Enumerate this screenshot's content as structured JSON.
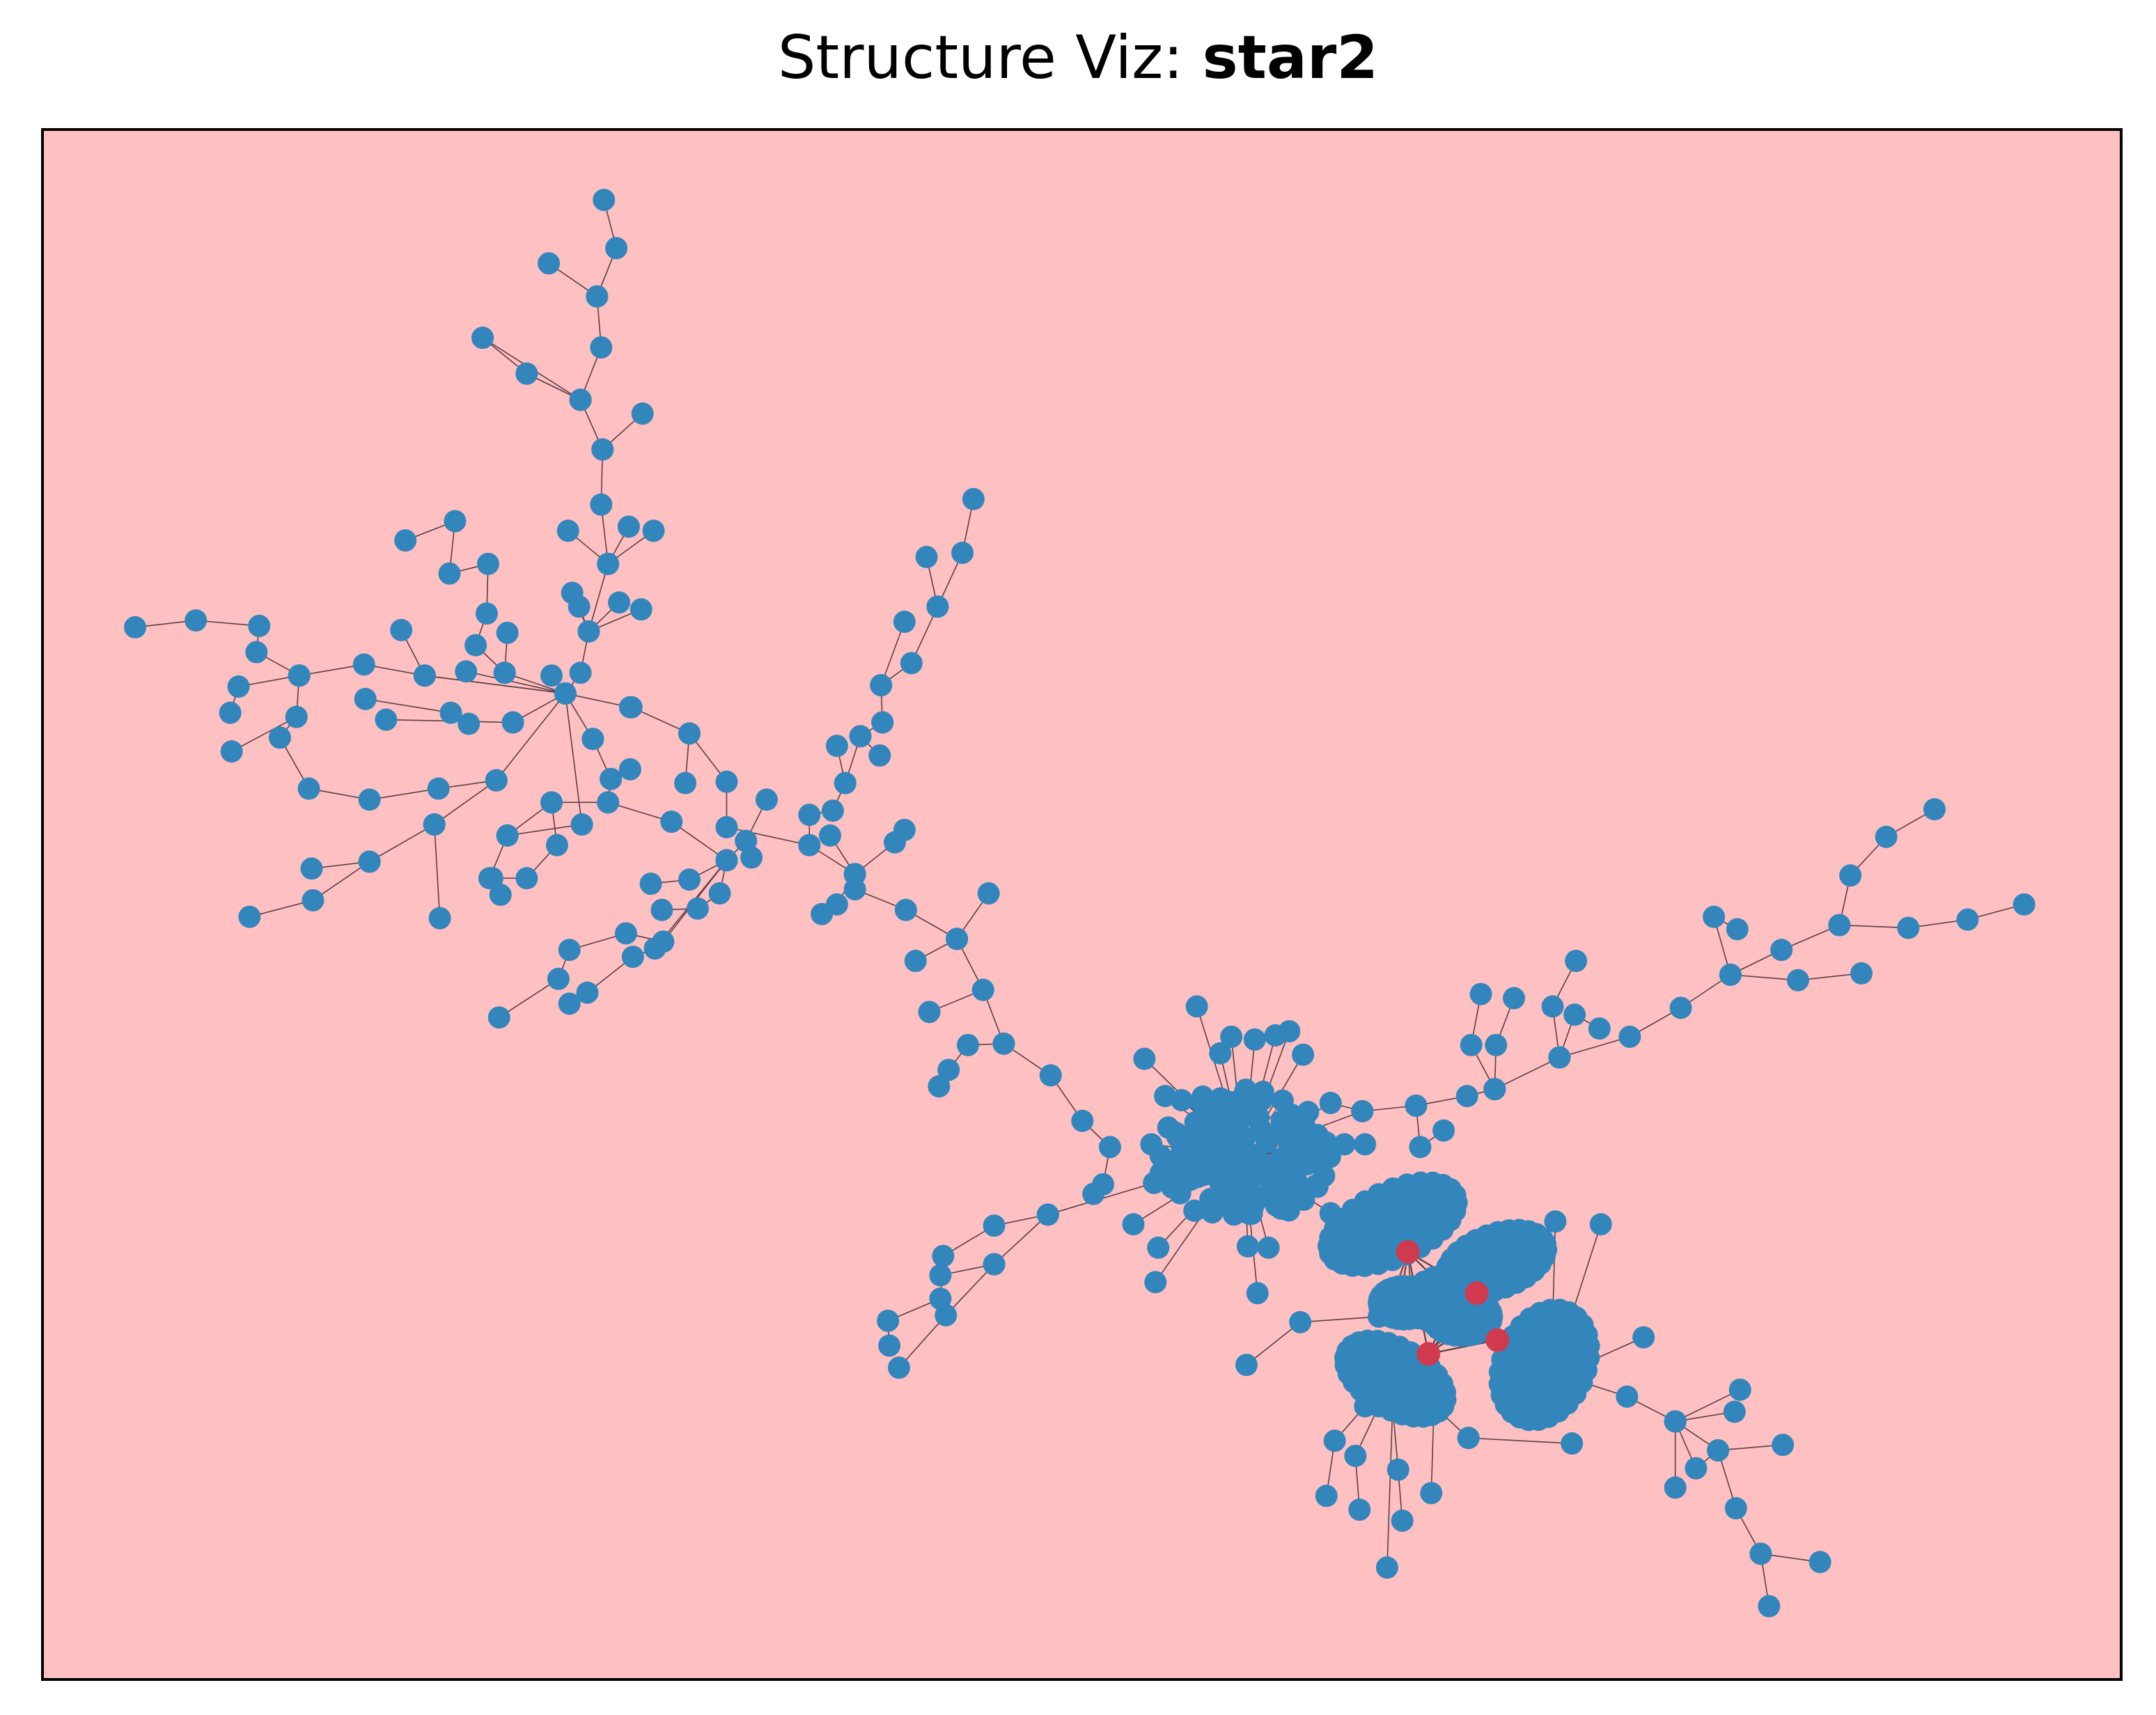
{
  "title": {
    "prefix": "Structure Viz: ",
    "name": "star2"
  },
  "colors": {
    "background": "#ffc0c2",
    "frame": "#000000",
    "node": "#3286bc",
    "hub_node": "#d03a4e",
    "edge": "#5a4044"
  },
  "graph": {
    "hub_nodes": 4,
    "structure": "star clusters with tree branches"
  }
}
